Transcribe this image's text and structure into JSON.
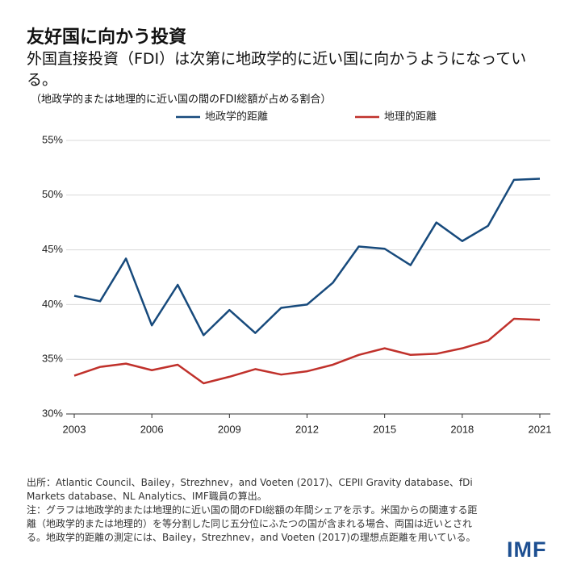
{
  "chart_data": {
    "type": "line",
    "title": "友好国に向かう投資",
    "subtitle": "外国直接投資（FDI）は次第に地政学的に近い国に向かうようになっている。",
    "y_label": "（地政学的または地理的に近い国の間のFDI総額が占める割合）",
    "x": [
      2003,
      2004,
      2005,
      2006,
      2007,
      2008,
      2009,
      2010,
      2011,
      2012,
      2013,
      2014,
      2015,
      2016,
      2017,
      2018,
      2019,
      2020,
      2021
    ],
    "series": [
      {
        "name": "地政学的距離",
        "color": "#174a7c",
        "values": [
          40.8,
          40.3,
          44.2,
          38.1,
          41.8,
          37.2,
          39.5,
          37.4,
          39.7,
          40.0,
          42.0,
          45.3,
          45.1,
          43.6,
          47.5,
          45.8,
          47.2,
          51.4,
          51.5
        ]
      },
      {
        "name": "地理的距離",
        "color": "#c0312b",
        "values": [
          33.5,
          34.3,
          34.6,
          34.0,
          34.5,
          32.8,
          33.4,
          34.1,
          33.6,
          33.9,
          34.5,
          35.4,
          36.0,
          35.4,
          35.5,
          36.0,
          36.7,
          38.7,
          38.6
        ]
      }
    ],
    "xlim": [
      2003,
      2021
    ],
    "xticks": [
      2003,
      2006,
      2009,
      2012,
      2015,
      2018,
      2021
    ],
    "ylim": [
      30,
      55
    ],
    "yticks": [
      {
        "value": 30,
        "label": "30%"
      },
      {
        "value": 35,
        "label": "35%"
      },
      {
        "value": 40,
        "label": "40%"
      },
      {
        "value": 45,
        "label": "45%"
      },
      {
        "value": 50,
        "label": "50%"
      },
      {
        "value": 55,
        "label": "55%"
      }
    ],
    "grid": true,
    "legend": "top",
    "source": "出所：Atlantic Council、Bailey，Strezhnev，and Voeten (2017)、CEPII Gravity database、fDi Markets database、NL Analytics、IMF職員の算出。",
    "note": "注：グラフは地政学的または地理的に近い国の間のFDI総額の年間シェアを示す。米国からの関連する距離（地政学的または地理的）を等分割した同じ五分位にふたつの国が含まれる場合、両国は近いとされる。地政学的距離の測定には、Bailey，Strezhnev，and Voeten (2017)の理想点距離を用いている。",
    "logo": "IMF"
  }
}
